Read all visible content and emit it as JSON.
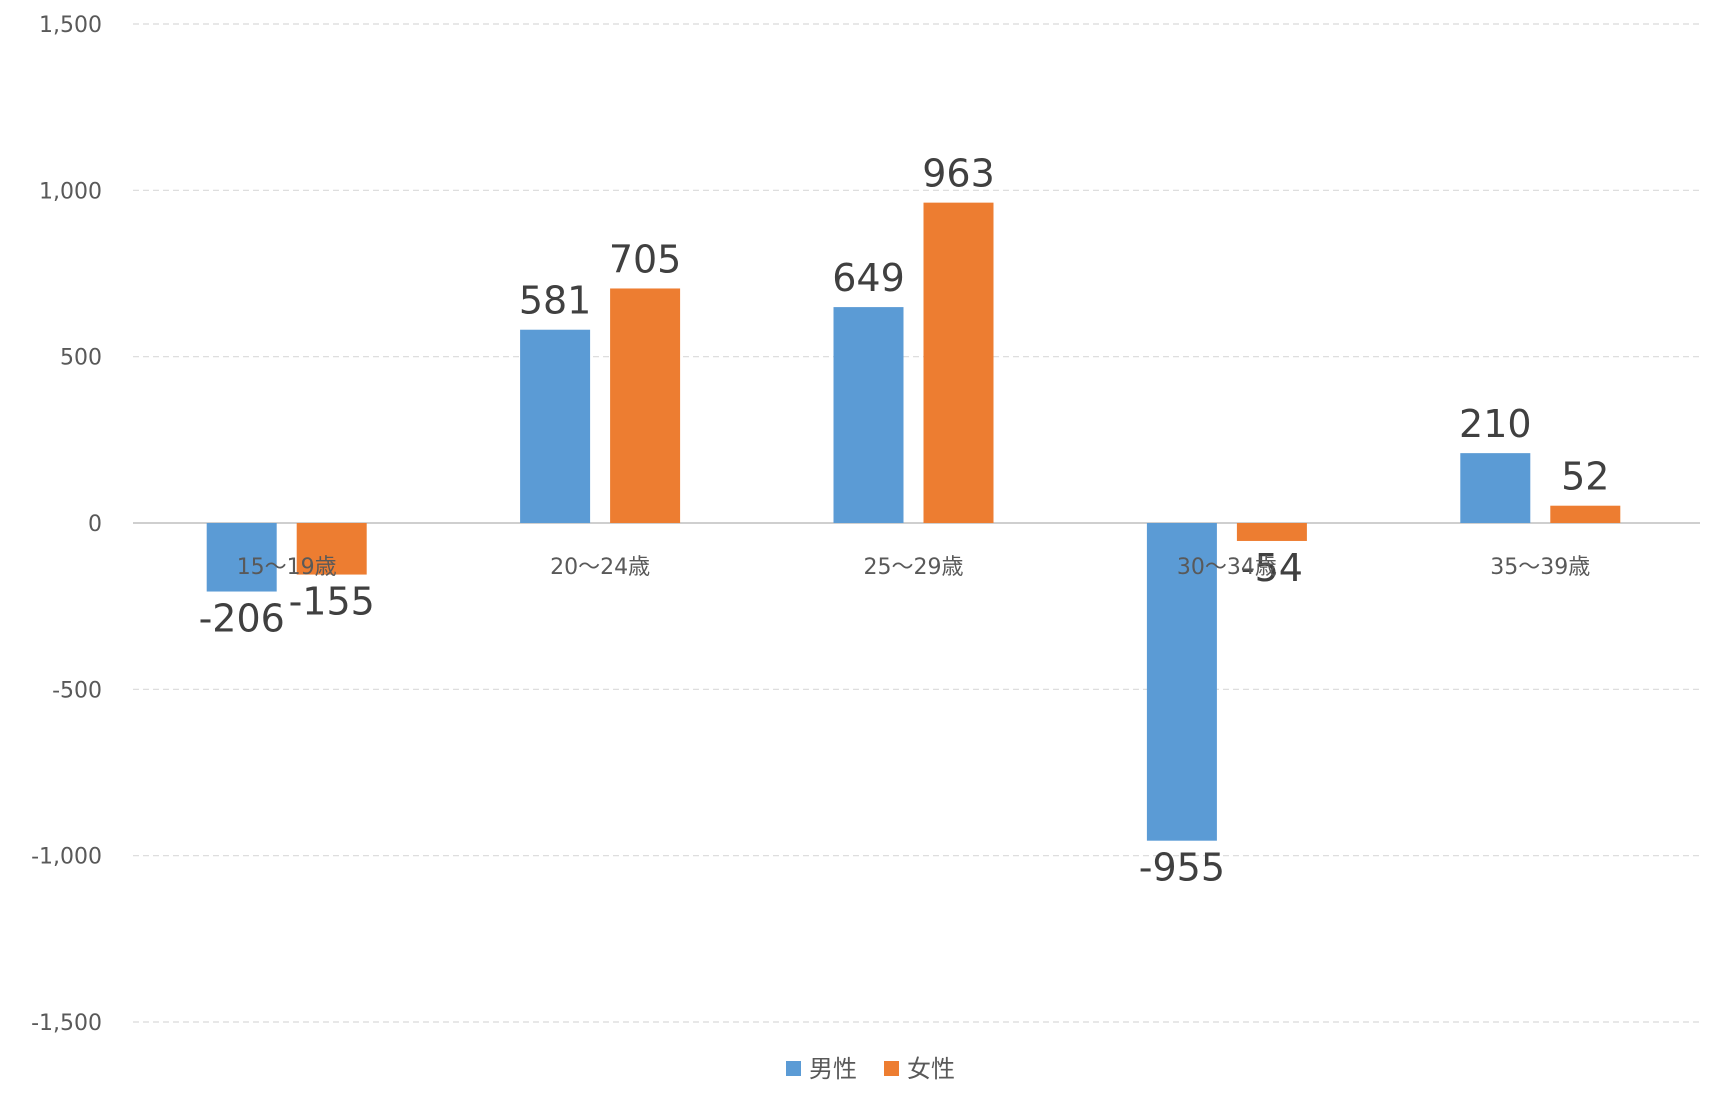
{
  "chart_data": {
    "type": "bar",
    "categories": [
      "15〜19歳",
      "20〜24歳",
      "25〜29歳",
      "30〜34歳",
      "35〜39歳"
    ],
    "series": [
      {
        "name": "男性",
        "values": [
          -206,
          581,
          649,
          -955,
          210
        ],
        "color": "#5B9BD5"
      },
      {
        "name": "女性",
        "values": [
          -155,
          705,
          963,
          -54,
          52
        ],
        "color": "#ED7D31"
      }
    ],
    "ylim": [
      -1500,
      1500
    ],
    "yticks": [
      1500,
      1000,
      500,
      0,
      -500,
      -1000,
      -1500
    ],
    "ytick_labels": [
      "1,500",
      "1,000",
      "500",
      "0",
      "-500",
      "-1,000",
      "-1,500"
    ],
    "grid": true,
    "legend_position": "bottom"
  }
}
